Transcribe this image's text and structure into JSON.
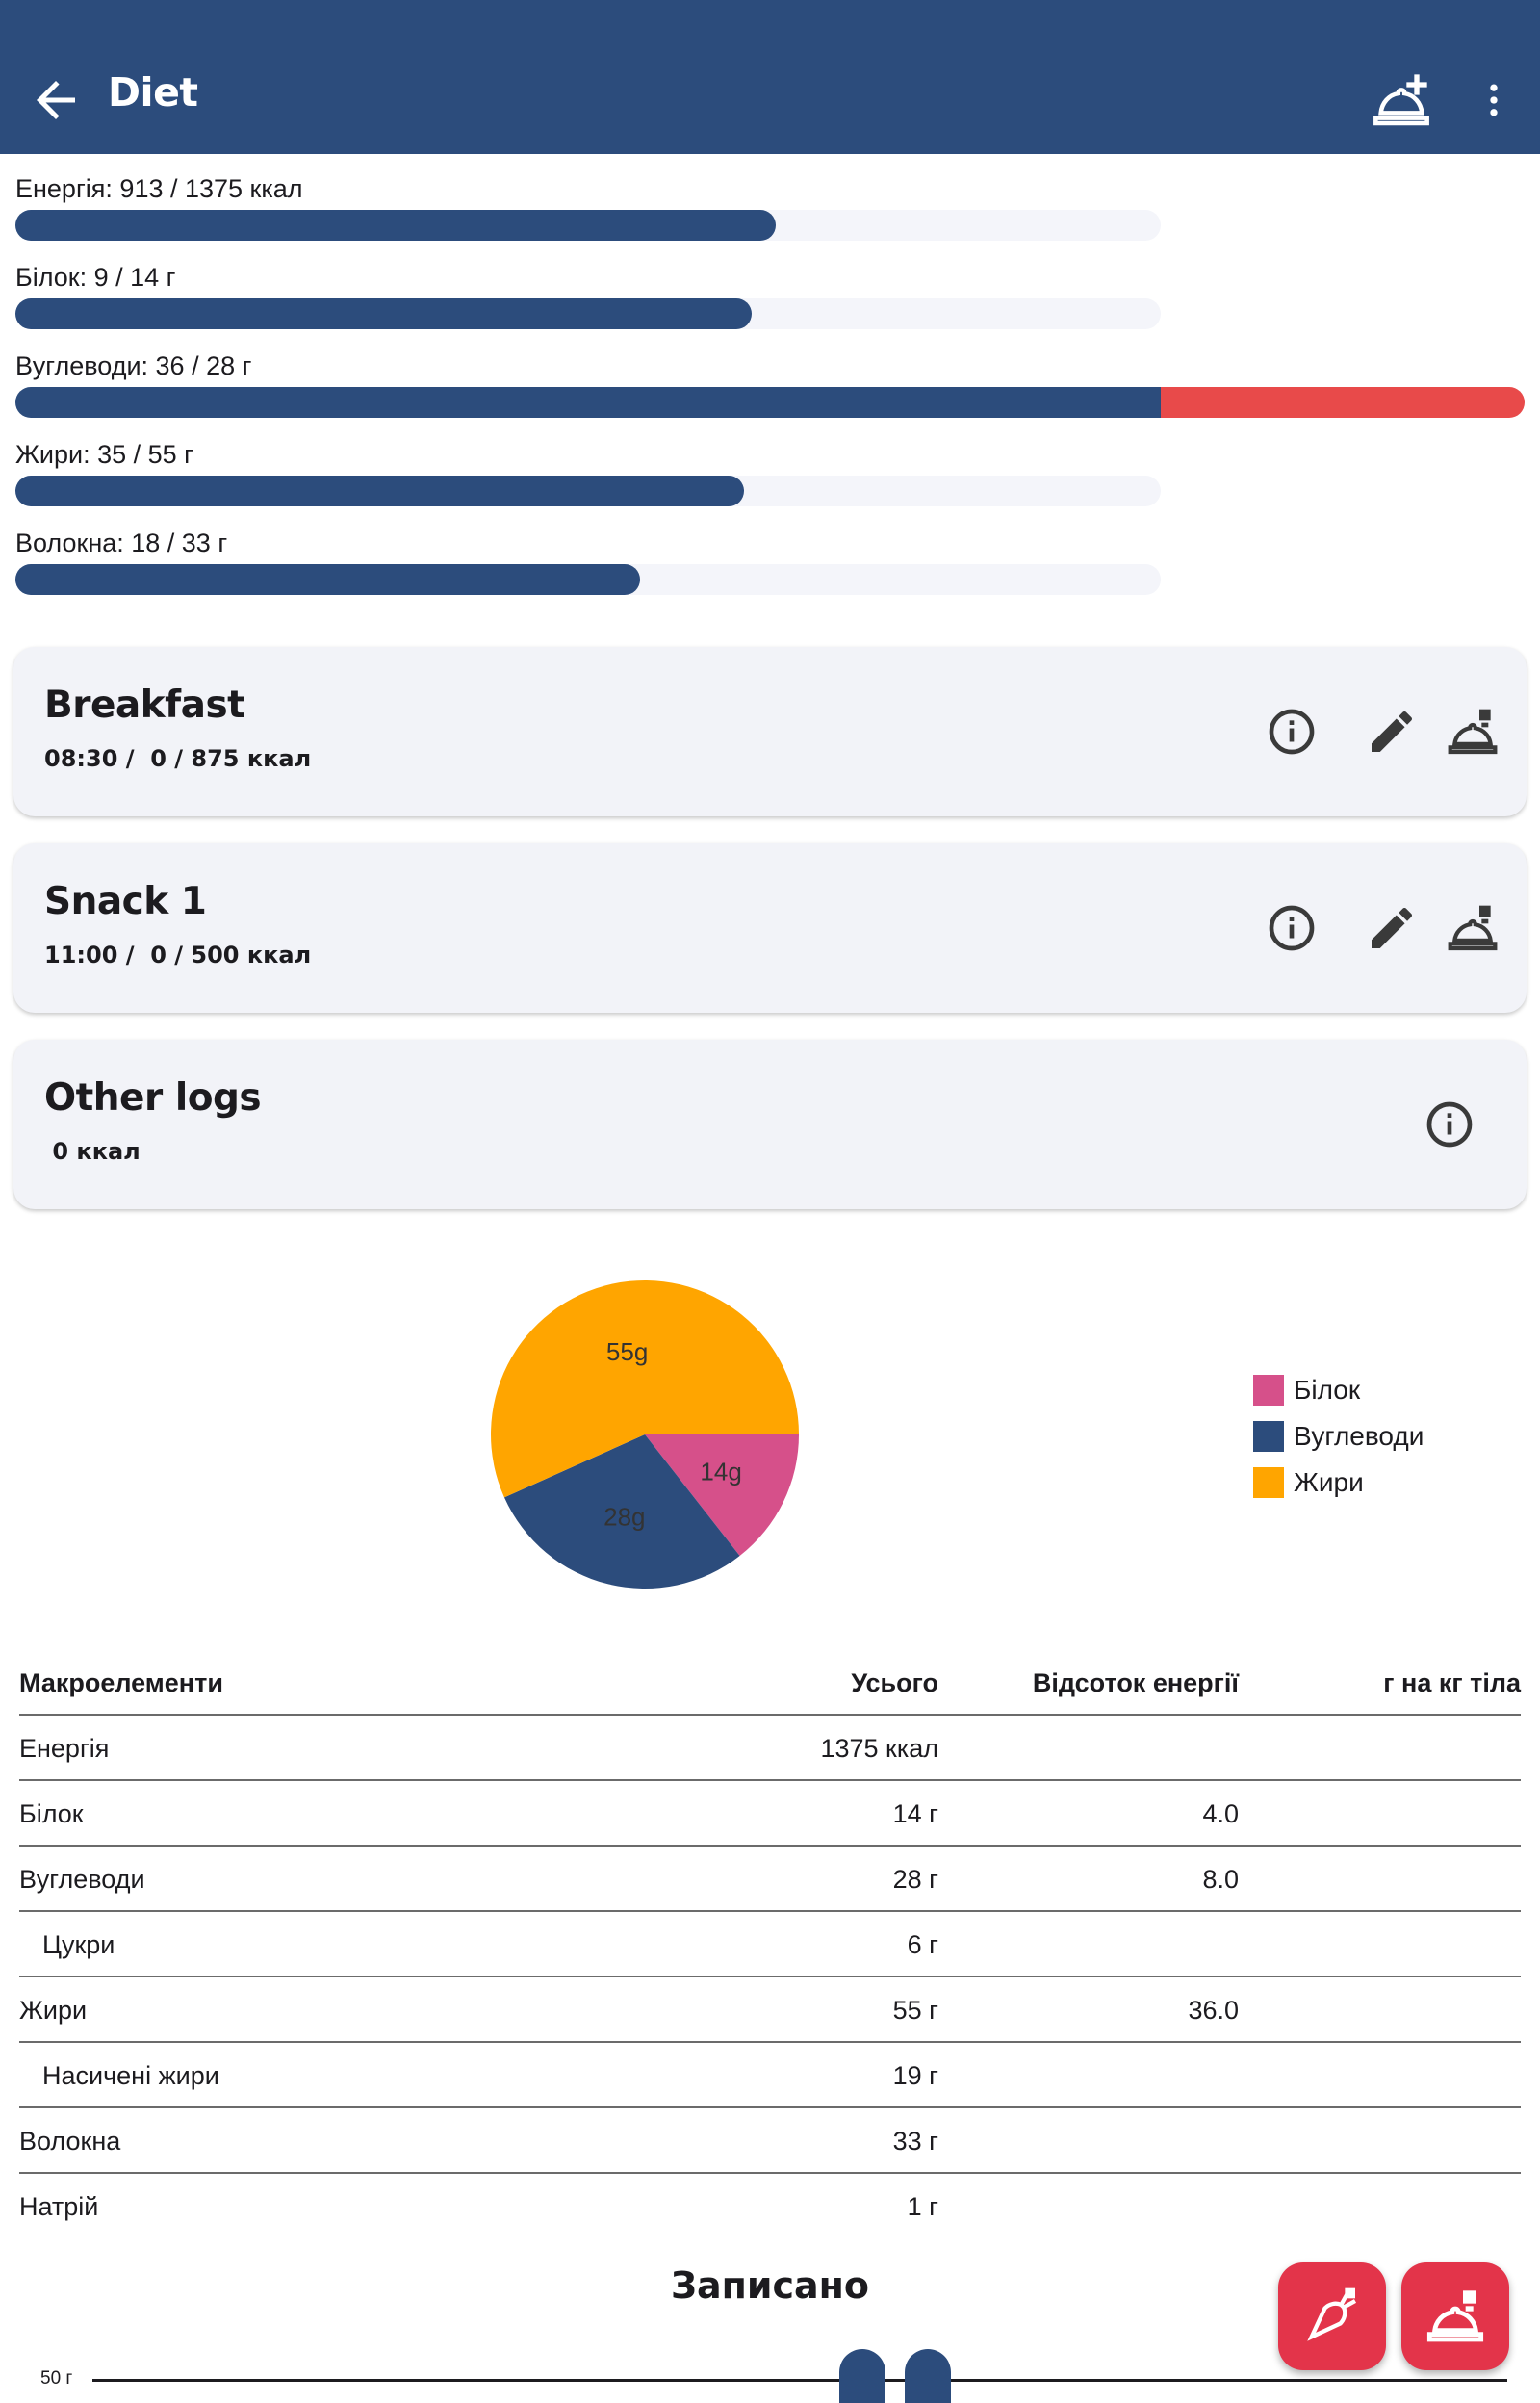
{
  "app_bar": {
    "title": "Diet"
  },
  "nutrient_progress": [
    {
      "label": "Енергія: 913 / 1375 ккал",
      "fraction": 0.664,
      "over": 0
    },
    {
      "label": "Білок: 9 / 14 г",
      "fraction": 0.643,
      "over": 0
    },
    {
      "label": "Вуглеводи: 36 / 28 г",
      "fraction": 1.0,
      "over": 0.286
    },
    {
      "label": "Жири: 35 / 55 г",
      "fraction": 0.636,
      "over": 0
    },
    {
      "label": "Волокна: 18 / 33 г",
      "fraction": 0.545,
      "over": 0
    }
  ],
  "meals": [
    {
      "title": "Breakfast",
      "subtitle": "08:30 /  0 / 875 ккал"
    },
    {
      "title": "Snack 1",
      "subtitle": "11:00 /  0 / 500 ккал"
    }
  ],
  "other_logs": {
    "title": "Other logs",
    "subtitle": " 0 ккал"
  },
  "chart_data": {
    "type": "pie",
    "slices": [
      {
        "name": "Білок",
        "value": 14,
        "label": "14g",
        "color": "#d6508a"
      },
      {
        "name": "Вуглеводи",
        "value": 28,
        "label": "28g",
        "color": "#2c4c7c"
      },
      {
        "name": "Жири",
        "value": 55,
        "label": "55g",
        "color": "#ffa500"
      }
    ],
    "legend_position": "right"
  },
  "macro_table": {
    "headers": [
      "Макроелементи",
      "Усього",
      "Відсоток енергії",
      "г на кг тіла"
    ],
    "rows": [
      {
        "name": "Енергія",
        "total": "1375 ккал",
        "pct": "",
        "gkg": "",
        "indent": false
      },
      {
        "name": "Білок",
        "total": "14 г",
        "pct": "4.0",
        "gkg": "",
        "indent": false
      },
      {
        "name": "Вуглеводи",
        "total": "28 г",
        "pct": "8.0",
        "gkg": "",
        "indent": false
      },
      {
        "name": "Цукри",
        "total": "6 г",
        "pct": "",
        "gkg": "",
        "indent": true
      },
      {
        "name": "Жири",
        "total": "55 г",
        "pct": "36.0",
        "gkg": "",
        "indent": false
      },
      {
        "name": "Насичені жири",
        "total": "19 г",
        "pct": "",
        "gkg": "",
        "indent": true
      },
      {
        "name": "Волокна",
        "total": "33 г",
        "pct": "",
        "gkg": "",
        "indent": false
      },
      {
        "name": "Натрій",
        "total": "1 г",
        "pct": "",
        "gkg": "",
        "indent": false
      }
    ]
  },
  "logged_chart": {
    "title": "Записано",
    "y_tick": "50 г"
  },
  "colors": {
    "primary": "#2c4c7c",
    "over": "#e84a4a",
    "fab": "#e3344a"
  },
  "icons": {
    "back": "arrow-back-icon",
    "add_meal": "room-service-add-icon",
    "more": "more-vert-icon",
    "info": "info-icon",
    "edit": "pencil-icon",
    "log_meal": "room-service-log-icon",
    "fab_ingredient": "carrot-icon",
    "fab_meal": "room-service-log-icon"
  }
}
